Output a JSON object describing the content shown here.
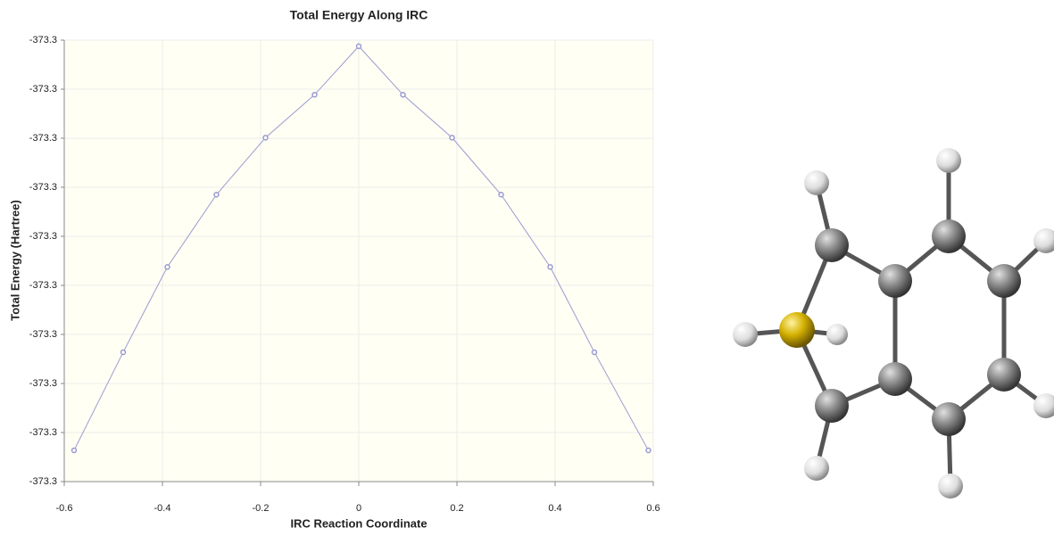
{
  "chart_data": {
    "type": "line",
    "title": "Total Energy Along IRC",
    "x_label": "IRC Reaction Coordinate",
    "y_label": "Total Energy (Hartree)",
    "x": [
      -0.58,
      -0.48,
      -0.39,
      -0.29,
      -0.19,
      -0.09,
      0,
      0.09,
      0.19,
      0.29,
      0.39,
      0.48,
      0.59
    ],
    "values": [
      -373.30309,
      -373.30149,
      -373.3001,
      -373.29892,
      -373.29799,
      -373.29729,
      -373.2965,
      -373.29729,
      -373.29799,
      -373.29892,
      -373.3001,
      -373.30149,
      -373.30309
    ],
    "color": "#9a9ad0",
    "xlim": [
      -0.6,
      0.6
    ],
    "xticks": [
      -0.6,
      -0.4,
      -0.2,
      0,
      0.2,
      0.4,
      0.6
    ],
    "ylim": [
      -373.3036,
      -373.2964
    ],
    "yticks": [
      {
        "value": -373.3036,
        "label": "-373.3"
      },
      {
        "value": -373.3028,
        "label": "-373.3"
      },
      {
        "value": -373.302,
        "label": "-373.3"
      },
      {
        "value": -373.3012,
        "label": "-373.3"
      },
      {
        "value": -373.3004,
        "label": "-373.3"
      },
      {
        "value": -373.2996,
        "label": "-373.3"
      },
      {
        "value": -373.2988,
        "label": "-373.3"
      },
      {
        "value": -373.298,
        "label": "-373.3"
      },
      {
        "value": -373.2972,
        "label": "-373.3"
      },
      {
        "value": -373.2964,
        "label": "-373.3"
      }
    ],
    "grid": true
  }
}
